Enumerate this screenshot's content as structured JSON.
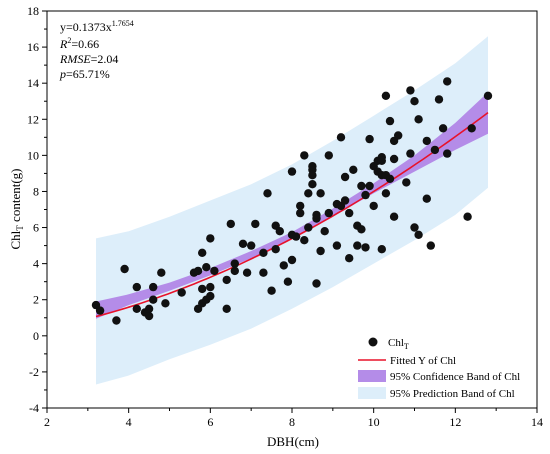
{
  "chart_data": {
    "type": "scatter",
    "xlabel": "DBH(cm)",
    "ylabel_main": "Chl",
    "ylabel_sub": "T",
    "ylabel_rest": " content(g)",
    "xlim": [
      2,
      14
    ],
    "ylim": [
      -4,
      18
    ],
    "x_ticks": [
      "2",
      "4",
      "6",
      "8",
      "10",
      "12",
      "14"
    ],
    "y_ticks": [
      "-4",
      "-2",
      "0",
      "2",
      "4",
      "6",
      "8",
      "10",
      "12",
      "14",
      "16",
      "18"
    ],
    "annotations": {
      "equation_base": "y=0.1373x",
      "equation_exp": "1.7654",
      "r2_label": "R",
      "r2_sup": "2",
      "r2_value": "=0.66",
      "rmse_label": "RMSE",
      "rmse_value": "=2.04",
      "p_label": "p",
      "p_value": "=65.71%"
    },
    "fit": {
      "a": 0.1373,
      "b": 1.7654,
      "x_range": [
        3.2,
        12.8
      ]
    },
    "confidence_band": {
      "x": [
        3.2,
        4,
        5,
        6,
        7,
        8,
        9,
        10,
        11,
        12,
        12.8
      ],
      "lower": [
        0.95,
        1.7,
        2.5,
        3.35,
        4.3,
        5.35,
        6.6,
        7.9,
        9.1,
        10.3,
        11.2
      ],
      "upper": [
        1.9,
        2.3,
        2.95,
        3.75,
        4.7,
        5.75,
        7.05,
        8.45,
        10.0,
        11.8,
        13.5
      ]
    },
    "prediction_band": {
      "x": [
        3.2,
        4,
        5,
        6,
        7,
        8,
        9,
        10,
        11,
        12,
        12.8
      ],
      "lower": [
        -2.7,
        -2.2,
        -1.3,
        -0.5,
        0.4,
        1.5,
        2.7,
        4.0,
        5.3,
        6.7,
        8.2
      ],
      "upper": [
        5.4,
        5.8,
        6.6,
        7.5,
        8.4,
        9.5,
        10.8,
        12.2,
        13.6,
        15.1,
        16.6
      ]
    },
    "series": [
      {
        "name": "Chl",
        "name_sub": "T",
        "points": [
          [
            3.2,
            1.7
          ],
          [
            3.3,
            1.4
          ],
          [
            3.7,
            0.85
          ],
          [
            3.9,
            3.7
          ],
          [
            4.2,
            2.7
          ],
          [
            4.2,
            1.5
          ],
          [
            4.4,
            1.3
          ],
          [
            4.5,
            1.1
          ],
          [
            4.5,
            1.5
          ],
          [
            4.6,
            2.7
          ],
          [
            4.6,
            2.0
          ],
          [
            4.8,
            3.5
          ],
          [
            4.9,
            1.8
          ],
          [
            5.3,
            2.4
          ],
          [
            5.6,
            3.5
          ],
          [
            5.7,
            1.5
          ],
          [
            5.7,
            3.6
          ],
          [
            5.8,
            2.6
          ],
          [
            5.8,
            4.6
          ],
          [
            5.8,
            1.8
          ],
          [
            5.9,
            2.0
          ],
          [
            5.9,
            3.8
          ],
          [
            6.0,
            2.7
          ],
          [
            6.0,
            2.2
          ],
          [
            6.0,
            5.4
          ],
          [
            6.1,
            3.6
          ],
          [
            6.4,
            3.1
          ],
          [
            6.4,
            1.5
          ],
          [
            6.5,
            6.2
          ],
          [
            6.6,
            4.0
          ],
          [
            6.6,
            3.6
          ],
          [
            6.8,
            5.1
          ],
          [
            6.9,
            3.5
          ],
          [
            7.0,
            5.0
          ],
          [
            7.1,
            6.2
          ],
          [
            7.3,
            3.5
          ],
          [
            7.3,
            4.6
          ],
          [
            7.4,
            7.9
          ],
          [
            7.5,
            2.5
          ],
          [
            7.6,
            6.1
          ],
          [
            7.6,
            4.8
          ],
          [
            7.7,
            5.8
          ],
          [
            7.8,
            3.9
          ],
          [
            7.9,
            3.0
          ],
          [
            8.0,
            4.2
          ],
          [
            8.0,
            5.6
          ],
          [
            8.0,
            9.1
          ],
          [
            8.1,
            5.5
          ],
          [
            8.2,
            7.2
          ],
          [
            8.2,
            6.8
          ],
          [
            8.3,
            5.3
          ],
          [
            8.3,
            10.0
          ],
          [
            8.4,
            7.9
          ],
          [
            8.4,
            6.0
          ],
          [
            8.5,
            8.4
          ],
          [
            8.5,
            9.2
          ],
          [
            8.5,
            9.4
          ],
          [
            8.5,
            8.9
          ],
          [
            8.6,
            6.5
          ],
          [
            8.6,
            6.7
          ],
          [
            8.6,
            2.9
          ],
          [
            8.7,
            4.7
          ],
          [
            8.7,
            7.9
          ],
          [
            8.8,
            5.8
          ],
          [
            8.9,
            6.8
          ],
          [
            8.9,
            10.0
          ],
          [
            9.1,
            7.3
          ],
          [
            9.1,
            5.0
          ],
          [
            9.2,
            7.2
          ],
          [
            9.2,
            11.0
          ],
          [
            9.3,
            7.5
          ],
          [
            9.3,
            8.8
          ],
          [
            9.4,
            4.3
          ],
          [
            9.4,
            6.8
          ],
          [
            9.5,
            9.2
          ],
          [
            9.6,
            6.1
          ],
          [
            9.6,
            5.0
          ],
          [
            9.7,
            8.3
          ],
          [
            9.7,
            5.9
          ],
          [
            9.8,
            7.8
          ],
          [
            9.8,
            4.9
          ],
          [
            9.9,
            10.9
          ],
          [
            9.9,
            8.3
          ],
          [
            10.0,
            7.2
          ],
          [
            10.0,
            9.4
          ],
          [
            10.1,
            9.1
          ],
          [
            10.1,
            9.7
          ],
          [
            10.2,
            9.9
          ],
          [
            10.2,
            9.7
          ],
          [
            10.2,
            8.9
          ],
          [
            10.2,
            4.8
          ],
          [
            10.3,
            8.9
          ],
          [
            10.3,
            7.9
          ],
          [
            10.3,
            13.3
          ],
          [
            10.4,
            11.9
          ],
          [
            10.4,
            8.7
          ],
          [
            10.5,
            6.6
          ],
          [
            10.5,
            9.8
          ],
          [
            10.5,
            10.8
          ],
          [
            10.6,
            11.1
          ],
          [
            10.8,
            8.5
          ],
          [
            10.9,
            13.6
          ],
          [
            10.9,
            10.1
          ],
          [
            11.0,
            13.0
          ],
          [
            11.0,
            6.0
          ],
          [
            11.1,
            12.0
          ],
          [
            11.1,
            5.6
          ],
          [
            11.3,
            7.6
          ],
          [
            11.3,
            10.8
          ],
          [
            11.4,
            5.0
          ],
          [
            11.5,
            10.3
          ],
          [
            11.6,
            13.1
          ],
          [
            11.7,
            11.5
          ],
          [
            11.8,
            14.1
          ],
          [
            11.8,
            10.1
          ],
          [
            12.3,
            6.6
          ],
          [
            12.4,
            11.5
          ],
          [
            12.8,
            13.3
          ]
        ]
      }
    ],
    "legend": {
      "position": "bottom-right",
      "points_label": "Chl",
      "points_sub": "T",
      "fit_label": "Fitted Y of Chl",
      "confidence_label": "95% Confidence Band of Chl",
      "prediction_label": "95% Prediction Band of Chl"
    },
    "colors": {
      "prediction_band": "#ddeefa",
      "confidence_band": "#b48ce8",
      "fit_line": "#e8122a",
      "points": "#111111",
      "axes": "#000000"
    }
  }
}
